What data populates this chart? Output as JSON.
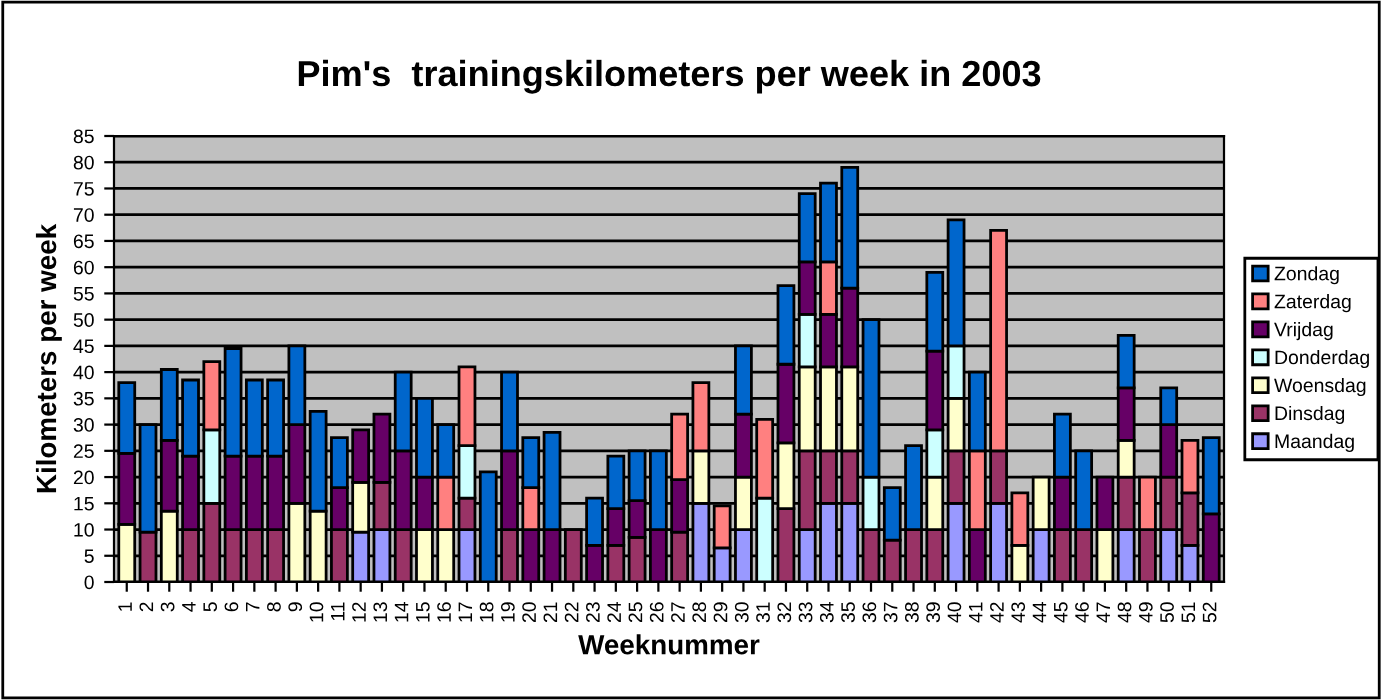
{
  "chart_data": {
    "type": "bar",
    "stacked": true,
    "title": "Pim's  trainingskilometers per week in 2003",
    "xlabel": "Weeknummer",
    "ylabel": "Kilometers per week",
    "categories": [
      "1",
      "2",
      "3",
      "4",
      "5",
      "6",
      "7",
      "8",
      "9",
      "10",
      "11",
      "12",
      "13",
      "14",
      "15",
      "16",
      "17",
      "18",
      "19",
      "20",
      "21",
      "22",
      "23",
      "24",
      "25",
      "26",
      "27",
      "28",
      "29",
      "30",
      "31",
      "32",
      "33",
      "34",
      "35",
      "36",
      "37",
      "38",
      "39",
      "40",
      "41",
      "42",
      "43",
      "44",
      "45",
      "46",
      "47",
      "48",
      "49",
      "50",
      "51",
      "52"
    ],
    "series": [
      {
        "name": "Maandag",
        "color": "#9999ff",
        "values": [
          null,
          null,
          null,
          null,
          null,
          null,
          null,
          null,
          null,
          null,
          null,
          9.5,
          10,
          null,
          null,
          null,
          10,
          null,
          null,
          null,
          null,
          null,
          null,
          null,
          null,
          null,
          null,
          15,
          6.5,
          10,
          null,
          null,
          10,
          15,
          15,
          null,
          null,
          null,
          null,
          15,
          null,
          15,
          null,
          10,
          null,
          null,
          null,
          10,
          null,
          10,
          7,
          null
        ]
      },
      {
        "name": "Dinsdag",
        "color": "#993366",
        "values": [
          null,
          9.5,
          null,
          10,
          15,
          10,
          10,
          10,
          null,
          null,
          10,
          null,
          9,
          10,
          null,
          null,
          6,
          null,
          10,
          null,
          null,
          10,
          null,
          7,
          8.5,
          null,
          9.5,
          null,
          null,
          null,
          null,
          14,
          15,
          10,
          10,
          10,
          8,
          10,
          10,
          10,
          null,
          10,
          null,
          null,
          10,
          10,
          null,
          10,
          10,
          10,
          10,
          null
        ]
      },
      {
        "name": "Woensdag",
        "color": "#ffffcc",
        "values": [
          11,
          null,
          13.5,
          null,
          null,
          null,
          null,
          null,
          15,
          13.5,
          null,
          9.5,
          null,
          null,
          10,
          10,
          null,
          null,
          null,
          null,
          null,
          null,
          null,
          null,
          null,
          null,
          null,
          10,
          null,
          10,
          null,
          12.5,
          16,
          16,
          16,
          null,
          null,
          null,
          10,
          10,
          null,
          null,
          7,
          10,
          null,
          null,
          10,
          7,
          null,
          null,
          null,
          null
        ]
      },
      {
        "name": "Donderdag",
        "color": "#ccffff",
        "values": [
          null,
          null,
          null,
          null,
          14,
          null,
          null,
          null,
          null,
          null,
          null,
          null,
          null,
          null,
          null,
          null,
          10,
          null,
          null,
          null,
          null,
          null,
          null,
          null,
          null,
          null,
          null,
          null,
          null,
          null,
          16,
          null,
          10,
          null,
          null,
          10,
          null,
          null,
          9,
          10,
          null,
          null,
          null,
          null,
          null,
          null,
          null,
          null,
          null,
          null,
          null,
          null
        ]
      },
      {
        "name": "Vrijdag",
        "color": "#660066",
        "values": [
          13.5,
          null,
          13.5,
          14,
          null,
          14,
          14,
          14,
          15,
          null,
          8,
          10,
          13,
          15,
          10,
          null,
          null,
          null,
          15,
          10,
          10,
          null,
          7,
          7,
          7,
          10,
          10,
          null,
          null,
          12,
          null,
          15,
          10,
          10,
          15,
          null,
          null,
          null,
          15,
          null,
          10,
          null,
          null,
          null,
          10,
          null,
          10,
          10,
          null,
          10,
          null,
          13
        ]
      },
      {
        "name": "Zaterdag",
        "color": "#ff8080",
        "values": [
          null,
          null,
          null,
          null,
          13,
          null,
          null,
          null,
          null,
          null,
          null,
          null,
          null,
          null,
          null,
          10,
          15,
          null,
          null,
          8,
          null,
          null,
          null,
          null,
          null,
          null,
          12.5,
          13,
          8,
          null,
          15,
          null,
          null,
          10,
          null,
          null,
          null,
          null,
          null,
          null,
          15,
          42,
          10,
          null,
          null,
          null,
          null,
          null,
          10,
          null,
          10,
          null
        ]
      },
      {
        "name": "Zondag",
        "color": "#0066cc",
        "values": [
          13.5,
          20.5,
          13.5,
          14.5,
          null,
          20.5,
          14.5,
          14.5,
          15,
          19,
          9.5,
          null,
          null,
          15,
          15,
          10,
          null,
          21,
          15,
          9.5,
          18.5,
          null,
          9,
          10,
          9.5,
          15,
          null,
          null,
          null,
          13,
          null,
          15,
          13,
          15,
          23,
          30,
          10,
          16,
          15,
          24,
          15,
          null,
          null,
          null,
          12,
          15,
          null,
          10,
          null,
          7,
          null,
          14.5
        ]
      }
    ],
    "ylim": [
      0,
      85
    ],
    "yticks": [
      0,
      5,
      10,
      15,
      20,
      25,
      30,
      35,
      40,
      45,
      50,
      55,
      60,
      65,
      70,
      75,
      80,
      85
    ],
    "grid": "y",
    "legend": "right"
  }
}
